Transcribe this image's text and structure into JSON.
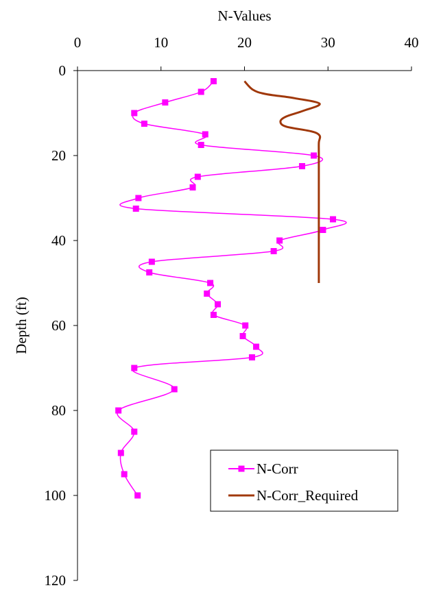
{
  "chart_data": {
    "type": "line",
    "xlabel": "N-Values",
    "ylabel": "Depth (ft)",
    "xlim": [
      0,
      40
    ],
    "ylim": [
      0,
      120
    ],
    "y_inverted": true,
    "x_axis_position": "top",
    "x_ticks": [
      "0",
      "10",
      "20",
      "30",
      "40"
    ],
    "y_ticks": [
      "0",
      "20",
      "40",
      "60",
      "80",
      "100",
      "120"
    ],
    "grid": false,
    "legend_position": "bottom-right",
    "series": [
      {
        "name": "N-Corr",
        "color": "#ff00ff",
        "marker": "square",
        "smooth": true,
        "points": [
          [
            16.3,
            2.5
          ],
          [
            14.8,
            5
          ],
          [
            10.5,
            7.5
          ],
          [
            6.8,
            10
          ],
          [
            8,
            12.5
          ],
          [
            15.3,
            15
          ],
          [
            14.8,
            17.5
          ],
          [
            28.3,
            20
          ],
          [
            26.9,
            22.5
          ],
          [
            14.4,
            25
          ],
          [
            13.8,
            27.5
          ],
          [
            7.3,
            30
          ],
          [
            7,
            32.5
          ],
          [
            30.6,
            35
          ],
          [
            29.4,
            37.5
          ],
          [
            24.2,
            40
          ],
          [
            23.5,
            42.5
          ],
          [
            8.9,
            45
          ],
          [
            8.6,
            47.5
          ],
          [
            15.9,
            50
          ],
          [
            15.5,
            52.5
          ],
          [
            16.8,
            55
          ],
          [
            16.3,
            57.5
          ],
          [
            20.1,
            60
          ],
          [
            19.8,
            62.5
          ],
          [
            21.4,
            65
          ],
          [
            20.9,
            67.5
          ],
          [
            6.8,
            70
          ],
          [
            11.6,
            75
          ],
          [
            4.9,
            80
          ],
          [
            6.8,
            85
          ],
          [
            5.2,
            90
          ],
          [
            5.6,
            95
          ],
          [
            7.2,
            100
          ]
        ]
      },
      {
        "name": "N-Corr_Required",
        "color": "#a0380a",
        "marker": "none",
        "smooth": true,
        "points": [
          [
            20,
            2.5
          ],
          [
            21,
            4.5
          ],
          [
            22.5,
            5.5
          ],
          [
            26,
            6.5
          ],
          [
            29,
            7.8
          ],
          [
            27,
            9.5
          ],
          [
            25,
            10.8
          ],
          [
            24.3,
            12
          ],
          [
            25,
            13.2
          ],
          [
            28,
            14.3
          ],
          [
            29,
            15.3
          ],
          [
            28.9,
            17
          ],
          [
            28.9,
            20
          ],
          [
            28.9,
            30
          ],
          [
            28.9,
            40
          ],
          [
            28.9,
            50
          ]
        ]
      }
    ]
  }
}
